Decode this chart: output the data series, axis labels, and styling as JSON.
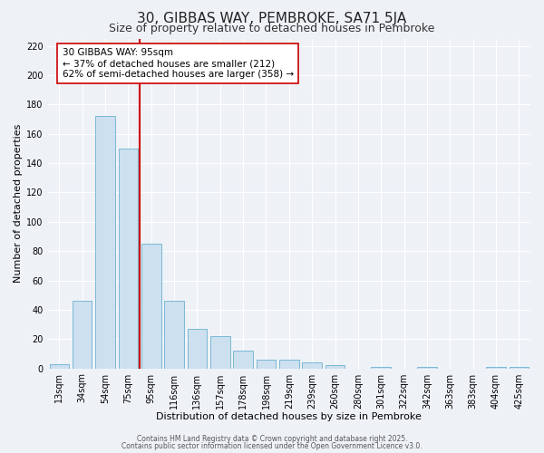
{
  "title": "30, GIBBAS WAY, PEMBROKE, SA71 5JA",
  "subtitle": "Size of property relative to detached houses in Pembroke",
  "xlabel": "Distribution of detached houses by size in Pembroke",
  "ylabel": "Number of detached properties",
  "bar_labels": [
    "13sqm",
    "34sqm",
    "54sqm",
    "75sqm",
    "95sqm",
    "116sqm",
    "136sqm",
    "157sqm",
    "178sqm",
    "198sqm",
    "219sqm",
    "239sqm",
    "260sqm",
    "280sqm",
    "301sqm",
    "322sqm",
    "342sqm",
    "363sqm",
    "383sqm",
    "404sqm",
    "425sqm"
  ],
  "bar_values": [
    3,
    46,
    172,
    150,
    85,
    46,
    27,
    22,
    12,
    6,
    6,
    4,
    2,
    0,
    1,
    0,
    1,
    0,
    0,
    1,
    1
  ],
  "bar_color": "#cce0f0",
  "bar_edgecolor": "#7ab8d4",
  "background_color": "#eef2f7",
  "plot_background": "#eef2f7",
  "ylim": [
    0,
    225
  ],
  "yticks": [
    0,
    20,
    40,
    60,
    80,
    100,
    120,
    140,
    160,
    180,
    200,
    220
  ],
  "vline_color": "#cc0000",
  "annotation_title": "30 GIBBAS WAY: 95sqm",
  "annotation_line1": "← 37% of detached houses are smaller (212)",
  "annotation_line2": "62% of semi-detached houses are larger (358) →",
  "annotation_box_color": "#ffffff",
  "annotation_box_edgecolor": "#cc0000",
  "footer1": "Contains HM Land Registry data © Crown copyright and database right 2025.",
  "footer2": "Contains public sector information licensed under the Open Government Licence v3.0.",
  "title_fontsize": 11,
  "subtitle_fontsize": 9,
  "xlabel_fontsize": 8,
  "ylabel_fontsize": 8,
  "tick_fontsize": 7,
  "footer_fontsize": 5.5,
  "annotation_fontsize": 7.5,
  "grid_color": "#ffffff",
  "vline_index": 3.5
}
